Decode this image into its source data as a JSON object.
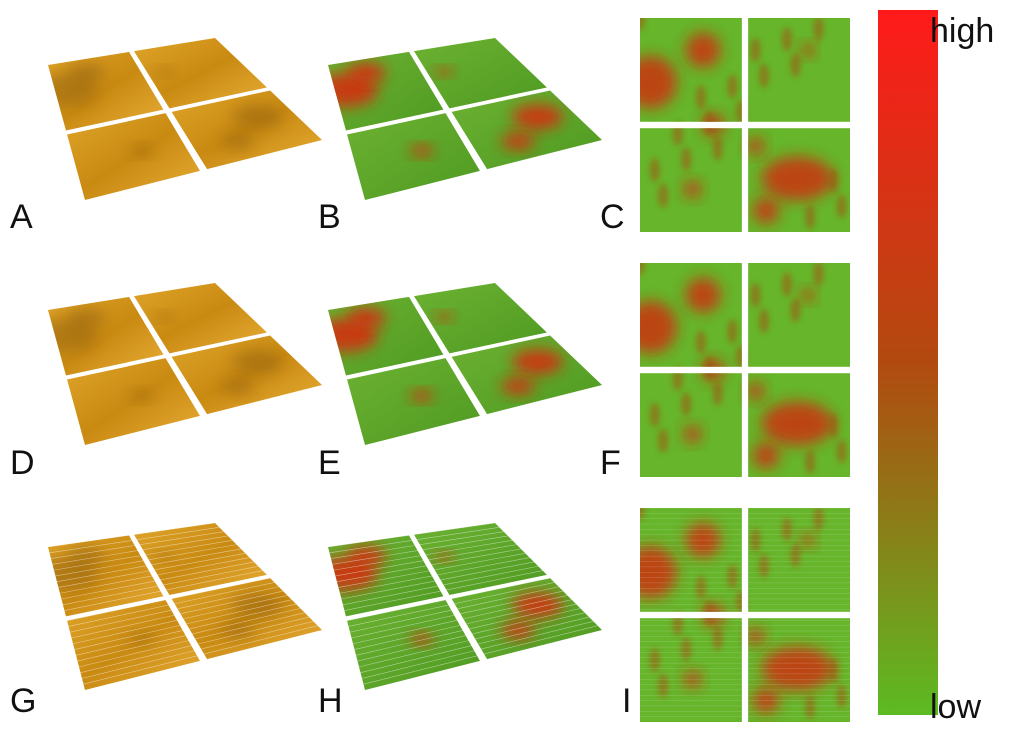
{
  "panels": [
    {
      "label": "A"
    },
    {
      "label": "B"
    },
    {
      "label": "C"
    },
    {
      "label": "D"
    },
    {
      "label": "E"
    },
    {
      "label": "F"
    },
    {
      "label": "G"
    },
    {
      "label": "H"
    },
    {
      "label": "I"
    }
  ],
  "colorbar": {
    "high": "high",
    "low": "low"
  }
}
